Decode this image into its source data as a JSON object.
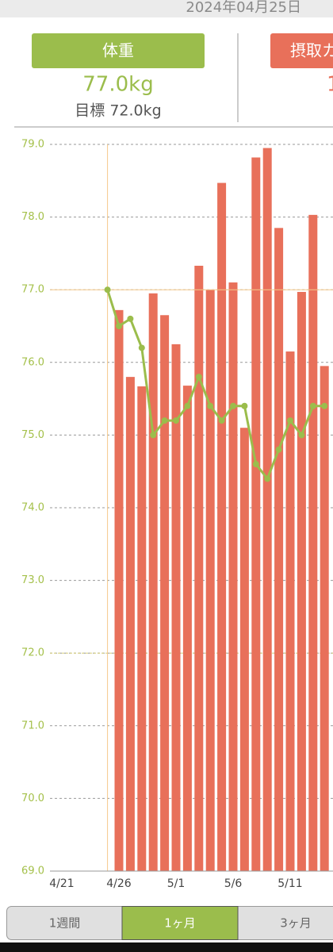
{
  "header": {
    "date": "2024年04月25日"
  },
  "summary": {
    "weight_button": "体重",
    "weight": "77.0kg",
    "goal": "目標 72.0kg",
    "intake_button": "摂取カ",
    "intake_value": "1"
  },
  "chart_data": {
    "type": "combo",
    "categories": [
      "4/21",
      null,
      null,
      null,
      null,
      "4/26",
      null,
      null,
      null,
      null,
      "5/1",
      null,
      null,
      null,
      null,
      "5/6",
      null,
      null,
      null,
      null,
      "5/11",
      null,
      null,
      null
    ],
    "series": [
      {
        "type": "bar",
        "color": "#e8705a",
        "values": [
          null,
          null,
          null,
          null,
          null,
          76.72,
          75.8,
          75.67,
          76.95,
          76.65,
          76.25,
          75.68,
          77.33,
          77.0,
          78.47,
          77.1,
          75.1,
          78.82,
          78.95,
          77.85,
          76.15,
          76.97,
          78.03,
          75.95
        ]
      },
      {
        "type": "line",
        "color": "#9bbd4c",
        "values": [
          null,
          null,
          null,
          null,
          77.0,
          76.5,
          76.6,
          76.2,
          75.0,
          75.2,
          75.2,
          75.4,
          75.8,
          75.4,
          75.2,
          75.4,
          75.4,
          74.6,
          74.4,
          74.8,
          75.2,
          75.0,
          75.4,
          75.4
        ]
      }
    ],
    "ylim": [
      69,
      79
    ],
    "yticks": [
      {
        "value": 69,
        "label": "69.0"
      },
      {
        "value": 70,
        "label": "70.0"
      },
      {
        "value": 71,
        "label": "71.0"
      },
      {
        "value": 72,
        "label": "72.0"
      },
      {
        "value": 73,
        "label": "73.0"
      },
      {
        "value": 74,
        "label": "74.0"
      },
      {
        "value": 75,
        "label": "75.0"
      },
      {
        "value": 76,
        "label": "76.0"
      },
      {
        "value": 77,
        "label": "77.0"
      },
      {
        "value": 78,
        "label": "78.0"
      },
      {
        "value": 79,
        "label": "79.0"
      }
    ],
    "grid": true,
    "target_line": 72,
    "crosshair_y": 77
  },
  "tabs": [
    "1週間",
    "1ヶ月",
    "3ヶ月"
  ],
  "selected_tab": 1
}
